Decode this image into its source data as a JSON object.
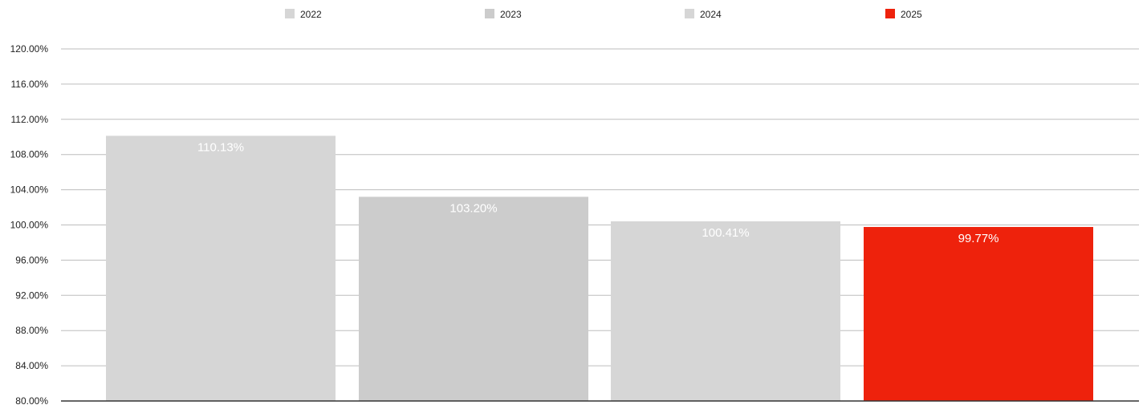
{
  "chart_data": {
    "type": "bar",
    "categories": [
      "2022",
      "2023",
      "2024",
      "2025"
    ],
    "values": [
      110.13,
      103.2,
      100.41,
      99.77
    ],
    "data_labels": [
      "110.13%",
      "103.20%",
      "100.41%",
      "99.77%"
    ],
    "colors": [
      "#d6d6d6",
      "#cccccc",
      "#d6d6d6",
      "#ee220c"
    ],
    "legend": {
      "position": "top",
      "entries": [
        {
          "label": "2022",
          "color": "#d6d6d6"
        },
        {
          "label": "2023",
          "color": "#cccccc"
        },
        {
          "label": "2024",
          "color": "#d6d6d6"
        },
        {
          "label": "2025",
          "color": "#ee220c"
        }
      ]
    },
    "title": "",
    "xlabel": "",
    "ylabel": "",
    "ylim": [
      80,
      120
    ],
    "yticks": [
      80,
      84,
      88,
      92,
      96,
      100,
      104,
      108,
      112,
      116,
      120
    ],
    "ytick_labels": [
      "80.00%",
      "84.00%",
      "88.00%",
      "92.00%",
      "96.00%",
      "100.00%",
      "104.00%",
      "108.00%",
      "112.00%",
      "116.00%",
      "120.00%"
    ],
    "grid": true
  }
}
